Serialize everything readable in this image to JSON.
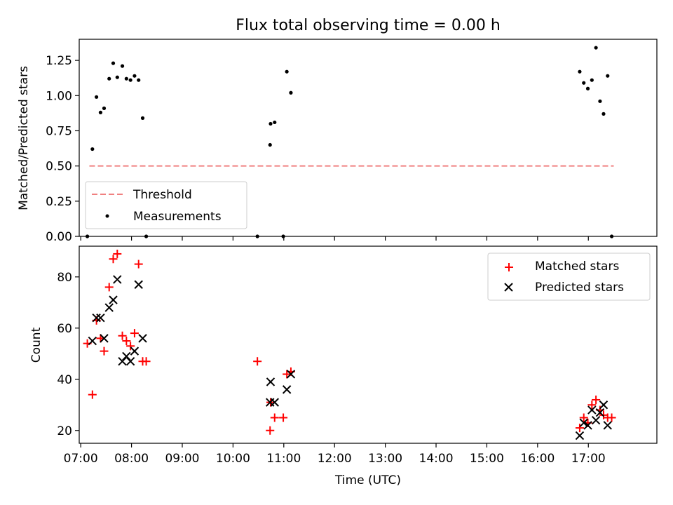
{
  "chart_data": [
    {
      "type": "scatter",
      "title": "Flux total observing time = 0.00 h",
      "xlabel": "",
      "ylabel": "Matched/Predicted stars",
      "xlim_hours": [
        6.97,
        18.35
      ],
      "ylim": [
        0,
        1.4
      ],
      "yticks": [
        0.0,
        0.25,
        0.5,
        0.75,
        1.0,
        1.25
      ],
      "ytick_labels": [
        "0.00",
        "0.25",
        "0.50",
        "0.75",
        "1.00",
        "1.25"
      ],
      "legend": {
        "placement": "lower-left",
        "entries": [
          "Threshold",
          "Measurements"
        ]
      },
      "threshold": {
        "name": "Threshold",
        "y": 0.5,
        "x_range_hours": [
          7.17,
          17.5
        ],
        "color": "#f08080",
        "style": "dashed"
      },
      "series": [
        {
          "name": "Measurements",
          "color": "#000000",
          "marker": "dot",
          "points": [
            {
              "x": 7.13,
              "y": 0.0
            },
            {
              "x": 7.23,
              "y": 0.62
            },
            {
              "x": 7.31,
              "y": 0.99
            },
            {
              "x": 7.39,
              "y": 0.88
            },
            {
              "x": 7.46,
              "y": 0.91
            },
            {
              "x": 7.56,
              "y": 1.12
            },
            {
              "x": 7.64,
              "y": 1.23
            },
            {
              "x": 7.72,
              "y": 1.13
            },
            {
              "x": 7.82,
              "y": 1.21
            },
            {
              "x": 7.9,
              "y": 1.12
            },
            {
              "x": 7.98,
              "y": 1.11
            },
            {
              "x": 8.06,
              "y": 1.14
            },
            {
              "x": 8.14,
              "y": 1.11
            },
            {
              "x": 8.22,
              "y": 0.84
            },
            {
              "x": 8.29,
              "y": 0.0
            },
            {
              "x": 10.48,
              "y": 0.0
            },
            {
              "x": 10.73,
              "y": 0.65
            },
            {
              "x": 10.74,
              "y": 0.8
            },
            {
              "x": 10.82,
              "y": 0.81
            },
            {
              "x": 10.99,
              "y": 0.0
            },
            {
              "x": 11.06,
              "y": 1.17
            },
            {
              "x": 11.14,
              "y": 1.02
            },
            {
              "x": 16.83,
              "y": 1.17
            },
            {
              "x": 16.91,
              "y": 1.09
            },
            {
              "x": 16.99,
              "y": 1.05
            },
            {
              "x": 17.07,
              "y": 1.11
            },
            {
              "x": 17.15,
              "y": 1.34
            },
            {
              "x": 17.23,
              "y": 0.96
            },
            {
              "x": 17.3,
              "y": 0.87
            },
            {
              "x": 17.38,
              "y": 1.14
            },
            {
              "x": 17.46,
              "y": 0.0
            }
          ]
        }
      ]
    },
    {
      "type": "scatter",
      "title": "",
      "xlabel": "Time (UTC)",
      "ylabel": "Count",
      "xlim_hours": [
        6.97,
        18.35
      ],
      "ylim": [
        15,
        92
      ],
      "yticks": [
        20,
        40,
        60,
        80
      ],
      "ytick_labels": [
        "20",
        "40",
        "60",
        "80"
      ],
      "xticks_hours": [
        7,
        8,
        9,
        10,
        11,
        12,
        13,
        14,
        15,
        16,
        17
      ],
      "xtick_labels": [
        "07:00",
        "08:00",
        "09:00",
        "10:00",
        "11:00",
        "12:00",
        "13:00",
        "14:00",
        "15:00",
        "16:00",
        "17:00"
      ],
      "legend": {
        "placement": "upper-right",
        "entries": [
          "Matched stars",
          "Predicted stars"
        ]
      },
      "series": [
        {
          "name": "Matched stars",
          "color": "#ff0000",
          "marker": "plus",
          "points": [
            {
              "x": 7.13,
              "y": 54
            },
            {
              "x": 7.23,
              "y": 34
            },
            {
              "x": 7.31,
              "y": 63
            },
            {
              "x": 7.39,
              "y": 56
            },
            {
              "x": 7.46,
              "y": 51
            },
            {
              "x": 7.56,
              "y": 76
            },
            {
              "x": 7.64,
              "y": 87
            },
            {
              "x": 7.72,
              "y": 89
            },
            {
              "x": 7.82,
              "y": 57
            },
            {
              "x": 7.9,
              "y": 55
            },
            {
              "x": 7.98,
              "y": 53
            },
            {
              "x": 8.06,
              "y": 58
            },
            {
              "x": 8.14,
              "y": 85
            },
            {
              "x": 8.22,
              "y": 47
            },
            {
              "x": 8.29,
              "y": 47
            },
            {
              "x": 10.48,
              "y": 47
            },
            {
              "x": 10.73,
              "y": 20
            },
            {
              "x": 10.74,
              "y": 31
            },
            {
              "x": 10.82,
              "y": 25
            },
            {
              "x": 10.99,
              "y": 25
            },
            {
              "x": 11.06,
              "y": 42
            },
            {
              "x": 11.14,
              "y": 43
            },
            {
              "x": 16.83,
              "y": 21
            },
            {
              "x": 16.91,
              "y": 25
            },
            {
              "x": 16.99,
              "y": 23
            },
            {
              "x": 17.07,
              "y": 30
            },
            {
              "x": 17.15,
              "y": 32
            },
            {
              "x": 17.23,
              "y": 28
            },
            {
              "x": 17.3,
              "y": 26
            },
            {
              "x": 17.38,
              "y": 25
            },
            {
              "x": 17.46,
              "y": 25
            }
          ]
        },
        {
          "name": "Predicted stars",
          "color": "#000000",
          "marker": "x",
          "points": [
            {
              "x": 7.23,
              "y": 55
            },
            {
              "x": 7.31,
              "y": 64
            },
            {
              "x": 7.39,
              "y": 64
            },
            {
              "x": 7.46,
              "y": 56
            },
            {
              "x": 7.56,
              "y": 68
            },
            {
              "x": 7.64,
              "y": 71
            },
            {
              "x": 7.72,
              "y": 79
            },
            {
              "x": 7.82,
              "y": 47
            },
            {
              "x": 7.9,
              "y": 49
            },
            {
              "x": 7.98,
              "y": 47
            },
            {
              "x": 8.06,
              "y": 51
            },
            {
              "x": 8.14,
              "y": 77
            },
            {
              "x": 8.22,
              "y": 56
            },
            {
              "x": 10.74,
              "y": 39
            },
            {
              "x": 10.73,
              "y": 31
            },
            {
              "x": 10.82,
              "y": 31
            },
            {
              "x": 11.06,
              "y": 36
            },
            {
              "x": 11.14,
              "y": 42
            },
            {
              "x": 16.83,
              "y": 18
            },
            {
              "x": 16.91,
              "y": 23
            },
            {
              "x": 16.99,
              "y": 22
            },
            {
              "x": 17.07,
              "y": 28
            },
            {
              "x": 17.15,
              "y": 24
            },
            {
              "x": 17.23,
              "y": 27
            },
            {
              "x": 17.3,
              "y": 30
            },
            {
              "x": 17.38,
              "y": 22
            }
          ]
        }
      ]
    }
  ]
}
